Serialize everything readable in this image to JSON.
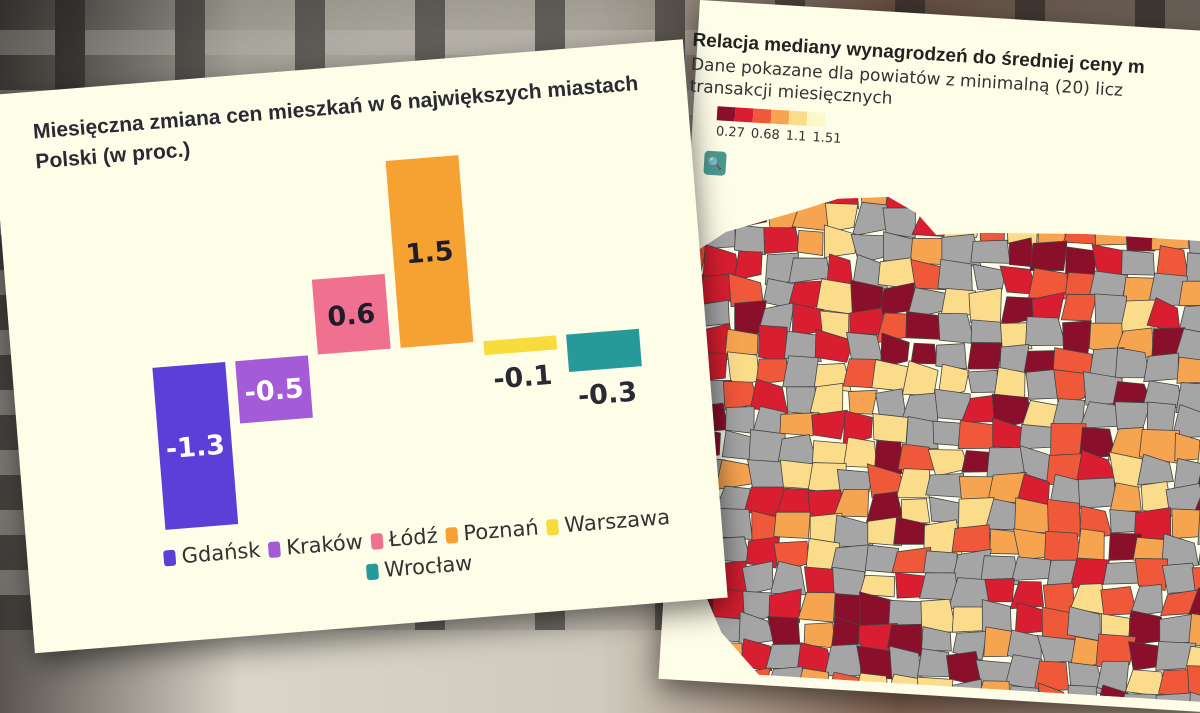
{
  "chart_data": {
    "type": "bar",
    "title": "Miesięczna zmiana cen mieszkań w 6 największych miastach Polski (w proc.)",
    "categories": [
      "Gdańsk",
      "Kraków",
      "Łódź",
      "Poznań",
      "Warszawa",
      "Wrocław"
    ],
    "values": [
      -1.3,
      -0.5,
      0.6,
      1.5,
      -0.1,
      -0.3
    ],
    "value_labels": [
      "-1.3",
      "-0.5",
      "0.6",
      "1.5",
      "-0.1",
      "-0.3"
    ],
    "colors": [
      "#5b3fd6",
      "#a55bd8",
      "#f07090",
      "#f5a233",
      "#f8dc3c",
      "#28999a"
    ],
    "xlabel": "",
    "ylabel": "",
    "legend": "bottom",
    "grid": false
  },
  "map": {
    "title": "Relacja mediany wynagrodzeń do średniej ceny m",
    "subtitle_line1": "Dane pokazane dla powiatów z minimalną (20) licz",
    "subtitle_line2": "transakcji miesięcznych",
    "legend_colors": [
      "#8a0f2a",
      "#d81e30",
      "#f0583a",
      "#f7a450",
      "#fbdc8a",
      "#fdf8cc"
    ],
    "legend_labels": [
      "0.27",
      "0.68",
      "1.1",
      "1.51"
    ],
    "nodata_color": "#a5a5a5",
    "search_icon": "search-icon"
  }
}
